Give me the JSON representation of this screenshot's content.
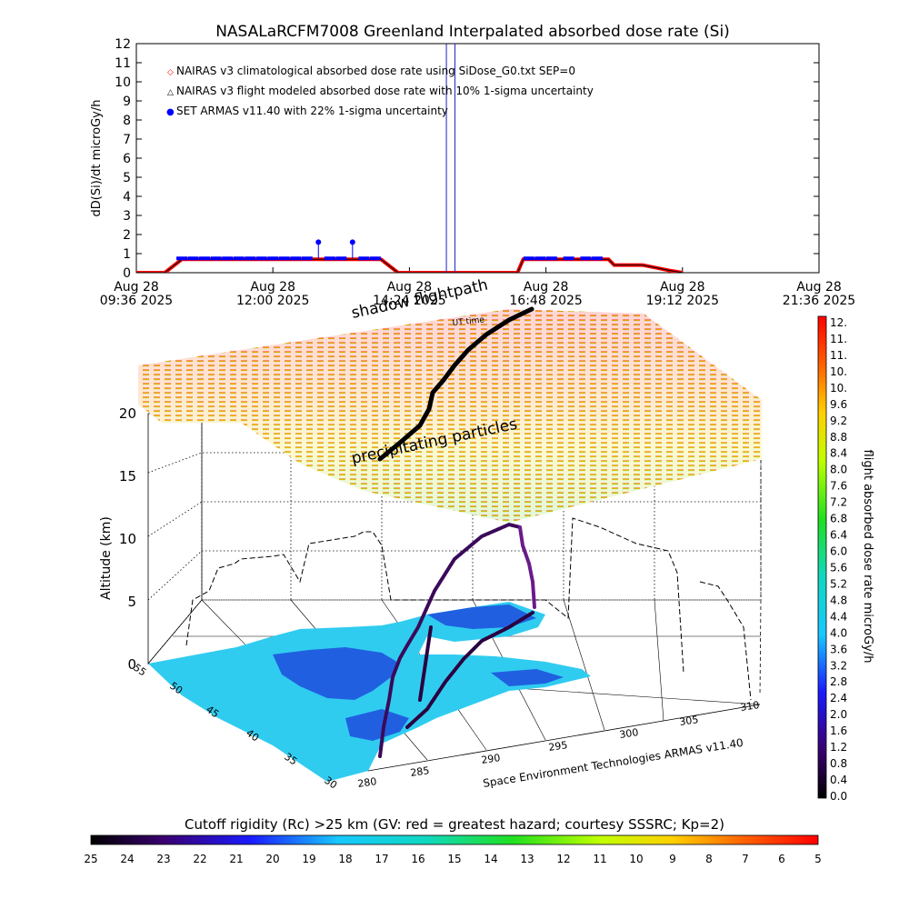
{
  "title": "NASALaRCFM7008  Greenland Interpalated absorbed dose rate (Si)",
  "colors": {
    "nairas_clim": "#ff0000",
    "nairas_flight": "#000000",
    "armas": "#0000ff",
    "spike": "#2020c0",
    "ocean": "#30ccf0",
    "land": "#2060e0"
  },
  "chart_data": [
    {
      "type": "line",
      "ylabel": "dD(Si)/dt microGy/h",
      "ylim": [
        0,
        12
      ],
      "yticks": [
        "0",
        "1",
        "2",
        "3",
        "4",
        "5",
        "6",
        "7",
        "8",
        "9",
        "10",
        "11",
        "12"
      ],
      "xlim": [
        "09:36",
        "21:36"
      ],
      "xticks": [
        {
          "date": "Aug 28",
          "time": "09:36 2025"
        },
        {
          "date": "Aug 28",
          "time": "12:00 2025"
        },
        {
          "date": "Aug 28",
          "time": "14:24 2025"
        },
        {
          "date": "Aug 28",
          "time": "16:48 2025"
        },
        {
          "date": "Aug 28",
          "time": "19:12 2025"
        },
        {
          "date": "Aug 28",
          "time": "21:36 2025"
        }
      ],
      "legend": [
        {
          "marker": "◇",
          "label": "NAIRAS v3 climatological absorbed dose rate using SiDose_G0.txt SEP=0"
        },
        {
          "marker": "△",
          "label": "NAIRAS v3 flight modeled absorbed dose rate with 10% 1-sigma uncertainty"
        },
        {
          "marker": "●",
          "label": "SET ARMAS v11.40 with 22% 1-sigma uncertainty"
        }
      ],
      "legend_position": "top-left",
      "series": [
        {
          "name": "NAIRAS v3 climatological absorbed dose rate using SiDose_G0.txt SEP=0",
          "hours": [
            9.6,
            10.1,
            10.4,
            13.9,
            14.2,
            15.4,
            16.3,
            16.4,
            17.9,
            18.0,
            18.5,
            19.0,
            19.2
          ],
          "values": [
            0,
            0,
            0.7,
            0.7,
            0,
            0,
            0,
            0.7,
            0.7,
            0.4,
            0.4,
            0.1,
            0
          ]
        },
        {
          "name": "SET ARMAS v11.40 with 22% 1-sigma uncertainty",
          "hours": [
            10.4,
            10.6,
            10.8,
            11.0,
            11.2,
            11.4,
            11.6,
            11.8,
            12.0,
            12.2,
            12.4,
            12.6,
            12.8,
            13.0,
            13.2,
            13.4,
            13.6,
            13.8,
            16.5,
            16.7,
            16.9,
            17.2,
            17.5,
            17.7
          ],
          "values": [
            0.75,
            0.75,
            0.75,
            0.75,
            0.75,
            0.75,
            0.75,
            0.75,
            0.75,
            0.75,
            0.75,
            0.75,
            1.6,
            0.75,
            0.75,
            1.6,
            0.75,
            0.75,
            0.75,
            0.75,
            0.75,
            0.75,
            0.75,
            0.75
          ]
        },
        {
          "name": "spikes",
          "hours": [
            15.05,
            15.2
          ],
          "values": [
            12.5,
            12.5
          ]
        }
      ]
    },
    {
      "type": "scatter",
      "labels_3d": {
        "shadow": "shadow flightpath",
        "utime": "UT time",
        "precip": "precipitating particles",
        "altitude": "Altitude (km)",
        "credit": "Space Environment Technologies ARMAS v11.40"
      },
      "zticks": [
        "0",
        "5",
        "10",
        "15",
        "20"
      ],
      "lat_ticks": [
        "30",
        "35",
        "40",
        "45",
        "50",
        "55"
      ],
      "lon_ticks": [
        "280",
        "285",
        "290",
        "295",
        "300",
        "305",
        "310"
      ]
    },
    {
      "type": "heatmap",
      "label": "flight absorbed dose rate microGy/h",
      "ticks": [
        "0.0",
        "0.4",
        "0.8",
        "1.2",
        "1.6",
        "2.0",
        "2.4",
        "2.8",
        "3.2",
        "3.6",
        "4.0",
        "4.4",
        "4.8",
        "5.2",
        "5.6",
        "6.0",
        "6.4",
        "6.8",
        "7.2",
        "7.6",
        "8.0",
        "8.4",
        "8.8",
        "9.2",
        "9.6",
        "10.",
        "10.",
        "11.",
        "11.",
        "12."
      ]
    },
    {
      "type": "heatmap",
      "label": "Cutoff rigidity (Rc) >25 km (GV: red = greatest hazard; courtesy SSSRC; Kp=2)",
      "ticks": [
        "25",
        "24",
        "23",
        "22",
        "21",
        "20",
        "19",
        "18",
        "17",
        "16",
        "15",
        "14",
        "13",
        "12",
        "11",
        "10",
        "9",
        "8",
        "7",
        "6",
        "5"
      ]
    }
  ]
}
